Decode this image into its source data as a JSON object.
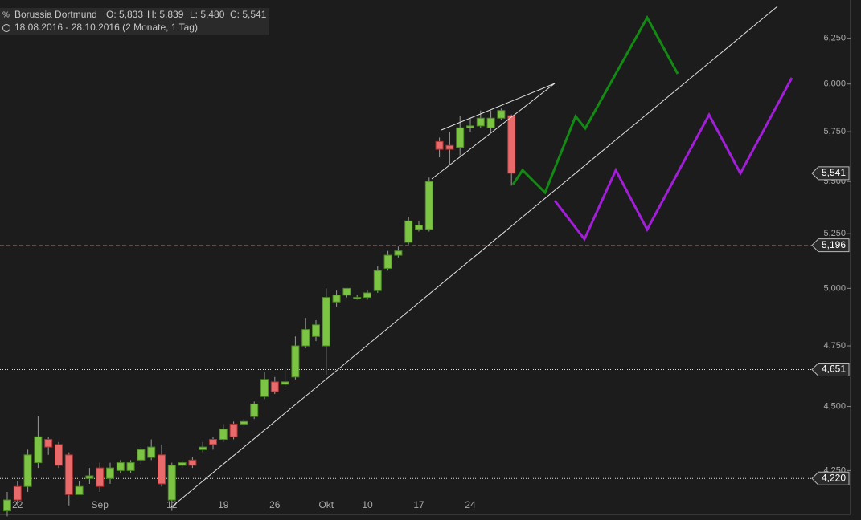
{
  "chart_data": {
    "type": "candlestick",
    "title": "Borussia Dortmund",
    "ohlc_labels": [
      "O: 5,833",
      "H: 5,839",
      "L: 5,480",
      "C: 5,541"
    ],
    "subtitle": "18.08.2016 - 28.10.2016 (2 Monate, 1 Tag)",
    "categories": [
      null,
      "22",
      null,
      null,
      null,
      null,
      null,
      null,
      null,
      "Sep",
      null,
      null,
      null,
      null,
      null,
      null,
      "12",
      null,
      null,
      null,
      null,
      "19",
      null,
      null,
      null,
      null,
      "26",
      null,
      null,
      null,
      null,
      "Okt",
      null,
      null,
      null,
      "10",
      null,
      null,
      null,
      null,
      "17",
      null,
      null,
      null,
      null,
      "24",
      null,
      null,
      null,
      null
    ],
    "open": [
      4.1,
      4.19,
      4.19,
      4.28,
      4.37,
      4.35,
      4.31,
      4.16,
      4.22,
      4.26,
      4.22,
      4.25,
      4.25,
      4.29,
      4.3,
      4.31,
      4.14,
      4.27,
      4.29,
      4.33,
      4.37,
      4.37,
      4.43,
      4.43,
      4.46,
      4.54,
      4.6,
      4.59,
      4.62,
      4.75,
      4.79,
      4.75,
      4.94,
      4.97,
      4.96,
      4.96,
      4.99,
      5.09,
      5.15,
      5.21,
      5.27,
      5.27,
      5.7,
      5.68,
      5.67,
      5.77,
      5.78,
      5.77,
      5.82,
      5.833
    ],
    "high": [
      4.17,
      4.21,
      4.33,
      4.46,
      4.38,
      4.36,
      4.32,
      4.21,
      4.26,
      4.28,
      4.28,
      4.29,
      4.29,
      4.34,
      4.37,
      4.35,
      4.28,
      4.29,
      4.3,
      4.36,
      4.38,
      4.43,
      4.44,
      4.45,
      4.52,
      4.64,
      4.62,
      4.66,
      4.79,
      4.87,
      4.86,
      5.0,
      4.99,
      5.0,
      4.97,
      4.99,
      5.1,
      5.17,
      5.19,
      5.33,
      5.31,
      5.52,
      5.72,
      5.75,
      5.83,
      5.82,
      5.86,
      5.86,
      5.87,
      5.839
    ],
    "low": [
      4.08,
      4.12,
      4.17,
      4.26,
      4.31,
      4.26,
      4.12,
      4.16,
      4.2,
      4.17,
      4.2,
      4.24,
      4.24,
      4.27,
      4.29,
      4.19,
      4.1,
      4.26,
      4.26,
      4.32,
      4.33,
      4.36,
      4.37,
      4.42,
      4.45,
      4.53,
      4.55,
      4.58,
      4.61,
      4.74,
      4.77,
      4.63,
      4.92,
      4.96,
      4.95,
      4.95,
      4.98,
      5.08,
      5.14,
      5.2,
      5.26,
      5.26,
      5.62,
      5.58,
      5.63,
      5.75,
      5.77,
      5.75,
      5.81,
      5.48
    ],
    "close": [
      4.14,
      4.14,
      4.31,
      4.38,
      4.34,
      4.27,
      4.16,
      4.19,
      4.23,
      4.19,
      4.26,
      4.28,
      4.28,
      4.33,
      4.34,
      4.2,
      4.27,
      4.28,
      4.27,
      4.34,
      4.35,
      4.41,
      4.38,
      4.44,
      4.51,
      4.61,
      4.56,
      4.6,
      4.75,
      4.82,
      4.84,
      4.96,
      4.97,
      5.0,
      4.96,
      4.98,
      5.08,
      5.15,
      5.17,
      5.31,
      5.29,
      5.5,
      5.66,
      5.66,
      5.77,
      5.78,
      5.82,
      5.82,
      5.86,
      5.541
    ],
    "up_color": "#7cc443",
    "down_color": "#e86a6a",
    "log_scale": true,
    "ylim": [
      4.09,
      6.43
    ],
    "yticks": [
      {
        "value": 4.25,
        "label": "4,250"
      },
      {
        "value": 4.5,
        "label": "4,500"
      },
      {
        "value": 4.75,
        "label": "4,750"
      },
      {
        "value": 5.0,
        "label": "5,000"
      },
      {
        "value": 5.25,
        "label": "5,250"
      },
      {
        "value": 5.5,
        "label": "5,500"
      },
      {
        "value": 5.75,
        "label": "5,750"
      },
      {
        "value": 6.0,
        "label": "6,000"
      },
      {
        "value": 6.25,
        "label": "6,250"
      }
    ],
    "price_lines": [
      {
        "value": 5.541,
        "label": "5,541",
        "style": "none",
        "color": "#dddddd"
      },
      {
        "value": 5.196,
        "label": "5,196",
        "style": "dashed",
        "color": "#b83232"
      },
      {
        "value": 4.651,
        "label": "4,651",
        "style": "dotted",
        "color": "#dddddd"
      },
      {
        "value": 4.22,
        "label": "4,220",
        "style": "dotted",
        "color": "#dddddd"
      }
    ]
  }
}
